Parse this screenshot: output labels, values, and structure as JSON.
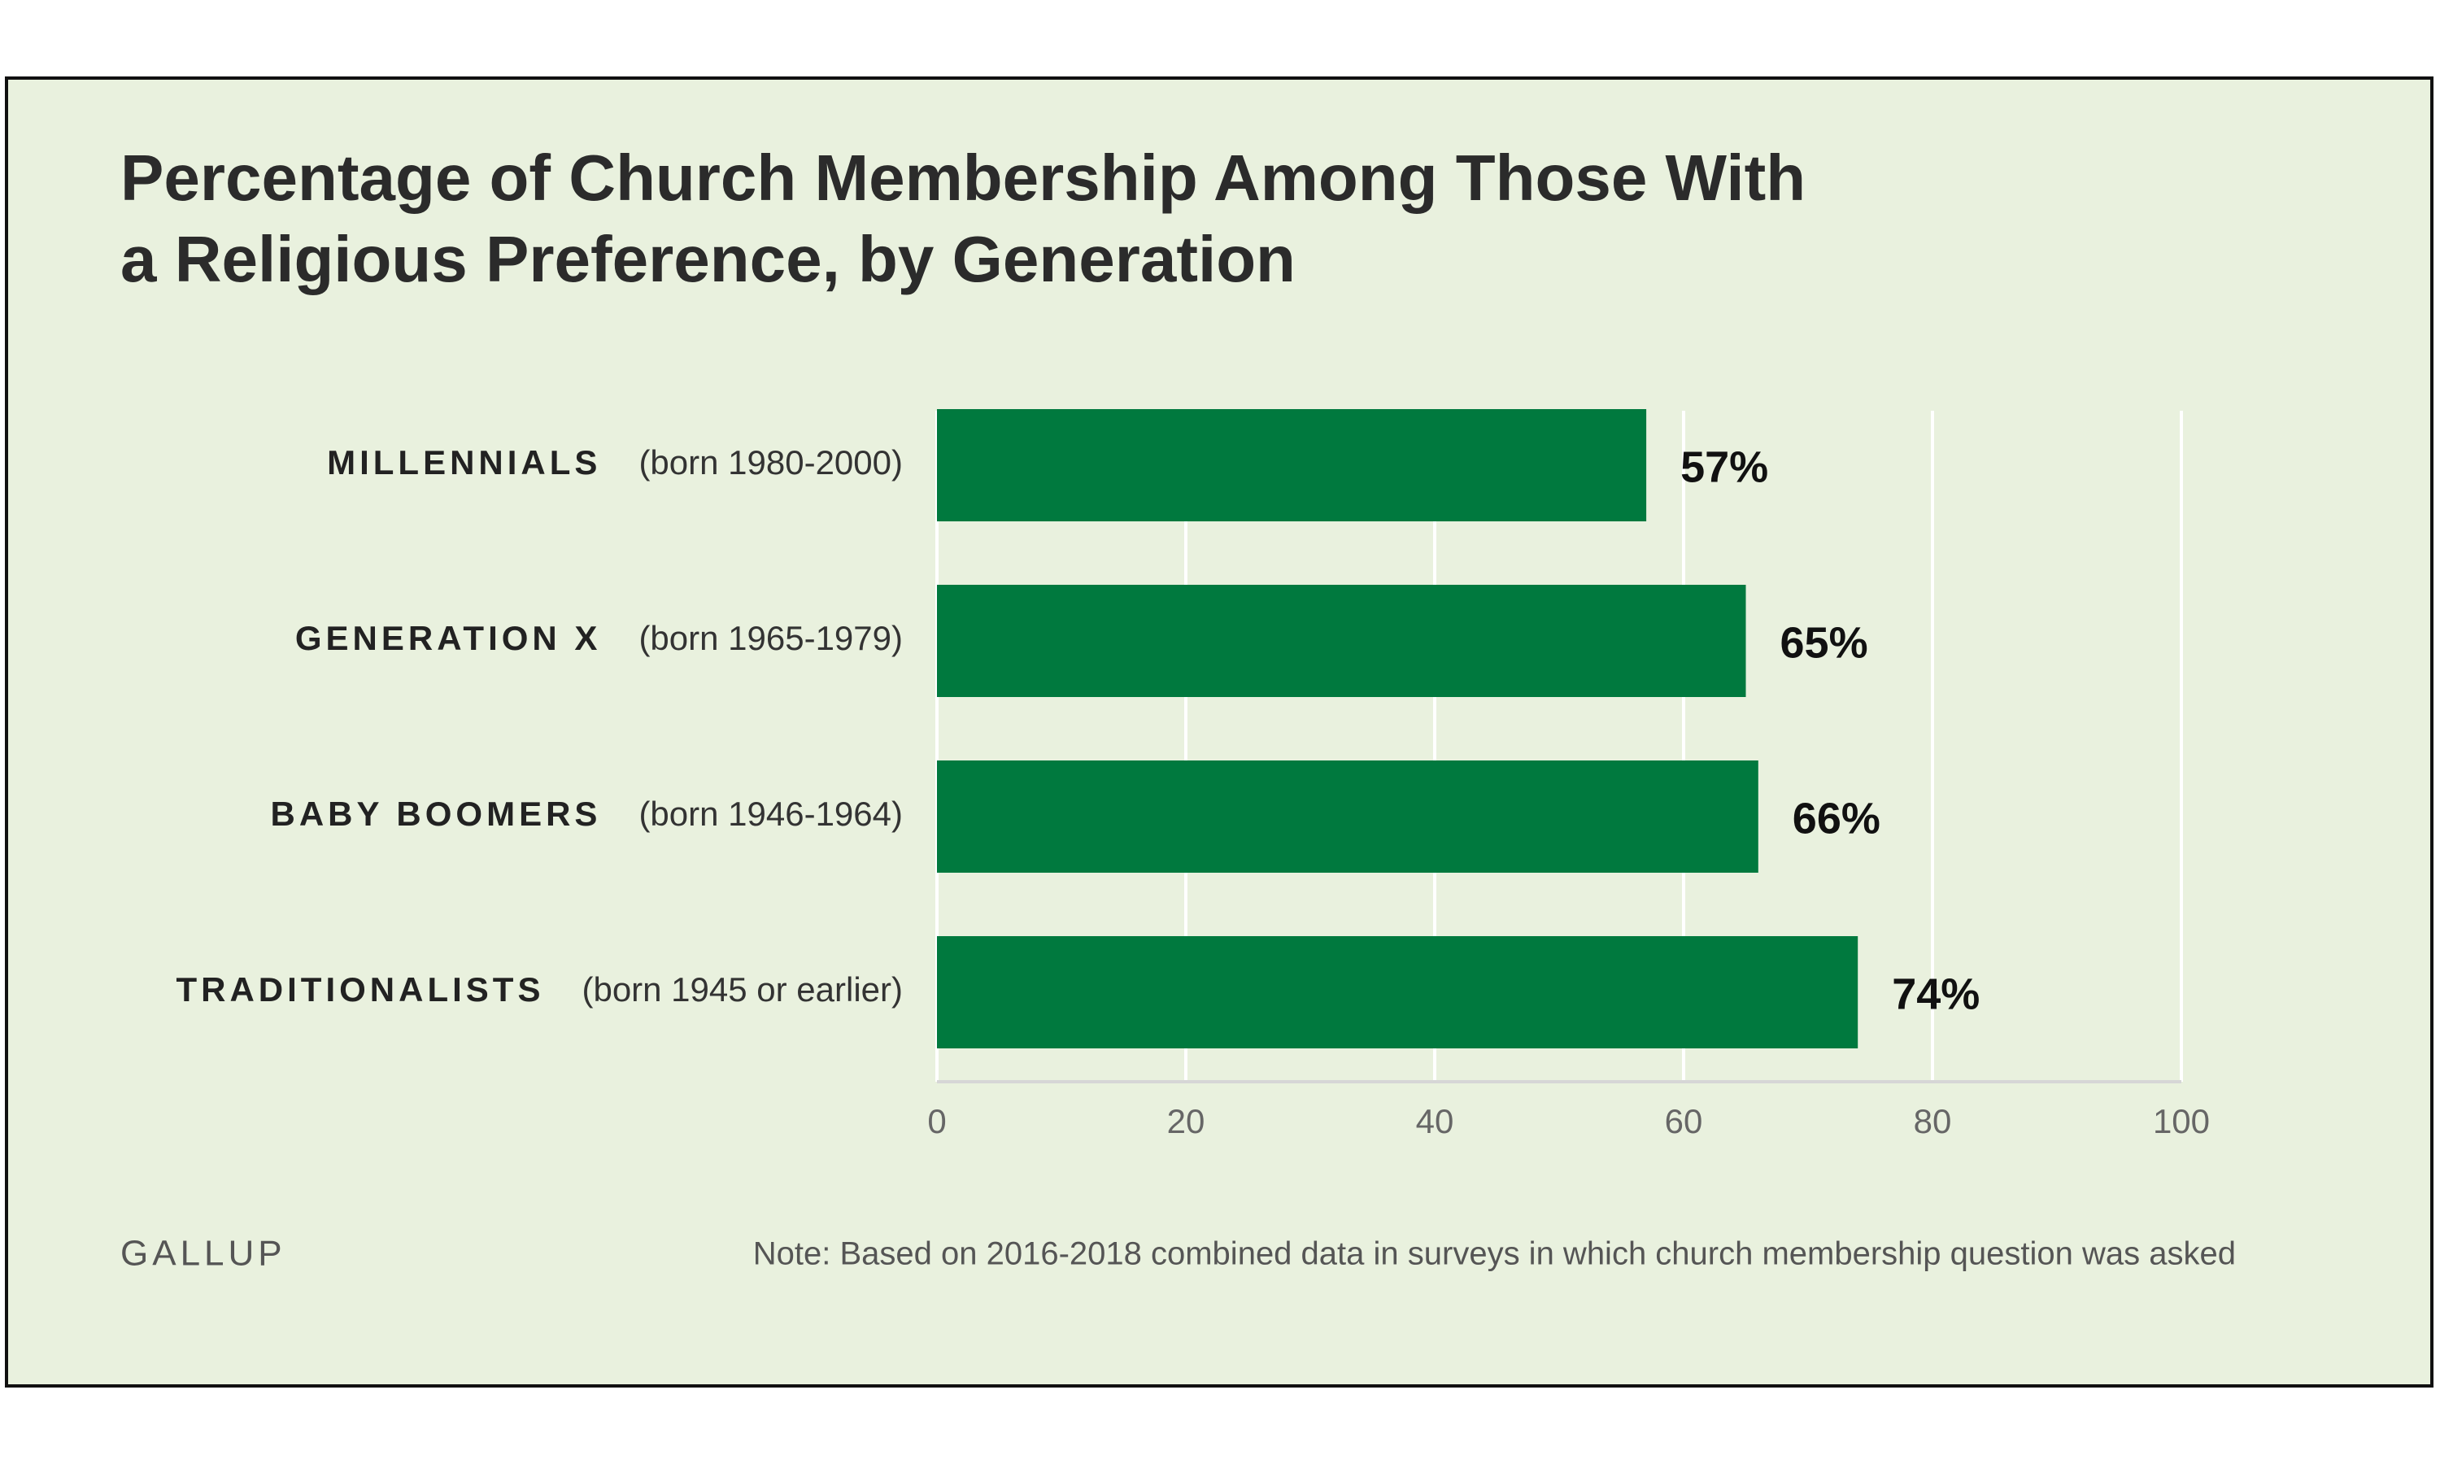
{
  "chart_data": {
    "type": "bar",
    "orientation": "horizontal",
    "title": [
      "Percentage of Church Membership Among Those With",
      "a Religious Preference, by Generation"
    ],
    "categories": [
      "MILLENNIALS",
      "GENERATION X",
      "BABY BOOMERS",
      "TRADITIONALISTS"
    ],
    "category_notes": [
      "(born 1980-2000)",
      "(born 1965-1979)",
      "(born 1946-1964)",
      "(born 1945 or earlier)"
    ],
    "values": [
      57,
      65,
      66,
      74
    ],
    "value_labels": [
      "57%",
      "65%",
      "66%",
      "74%"
    ],
    "color": "#00793e",
    "xlim": [
      0,
      100
    ],
    "xticks": [
      0,
      20,
      40,
      60,
      80,
      100
    ],
    "grid": true,
    "source": "GALLUP",
    "note": "Note: Based on 2016-2018 combined data in surveys in which church membership question was asked"
  }
}
